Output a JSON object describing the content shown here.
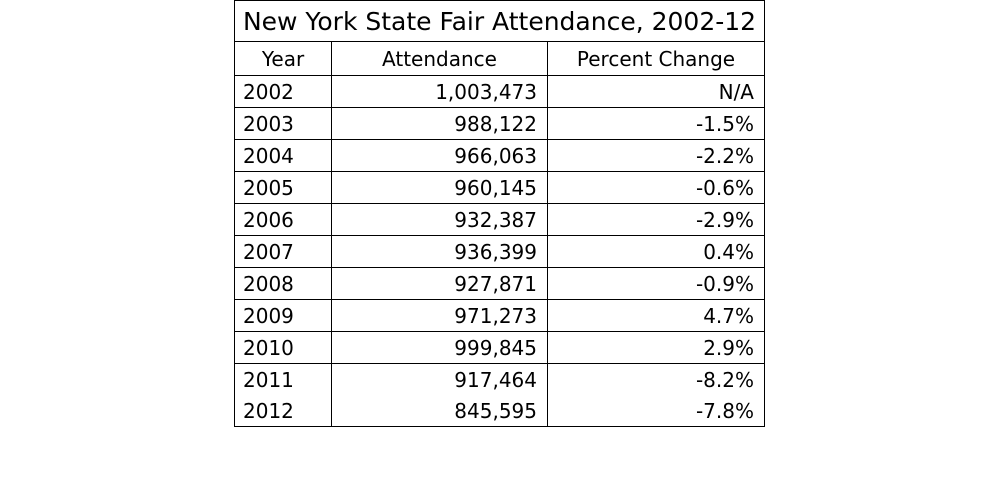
{
  "chart_data": {
    "type": "table",
    "title": "New York State Fair Attendance, 2002-12",
    "columns": [
      "Year",
      "Attendance",
      "Percent Change"
    ],
    "rows": [
      {
        "year": "2002",
        "attendance": "1,003,473",
        "percent_change": "N/A"
      },
      {
        "year": "2003",
        "attendance": "988,122",
        "percent_change": "-1.5%"
      },
      {
        "year": "2004",
        "attendance": "966,063",
        "percent_change": "-2.2%"
      },
      {
        "year": "2005",
        "attendance": "960,145",
        "percent_change": "-0.6%"
      },
      {
        "year": "2006",
        "attendance": "932,387",
        "percent_change": "-2.9%"
      },
      {
        "year": "2007",
        "attendance": "936,399",
        "percent_change": "0.4%"
      },
      {
        "year": "2008",
        "attendance": "927,871",
        "percent_change": "-0.9%"
      },
      {
        "year": "2009",
        "attendance": "971,273",
        "percent_change": "4.7%"
      },
      {
        "year": "2010",
        "attendance": "999,845",
        "percent_change": "2.9%"
      },
      {
        "year": "2011",
        "attendance": "917,464",
        "percent_change": "-8.2%"
      },
      {
        "year": "2012",
        "attendance": "845,595",
        "percent_change": "-7.8%"
      }
    ]
  }
}
